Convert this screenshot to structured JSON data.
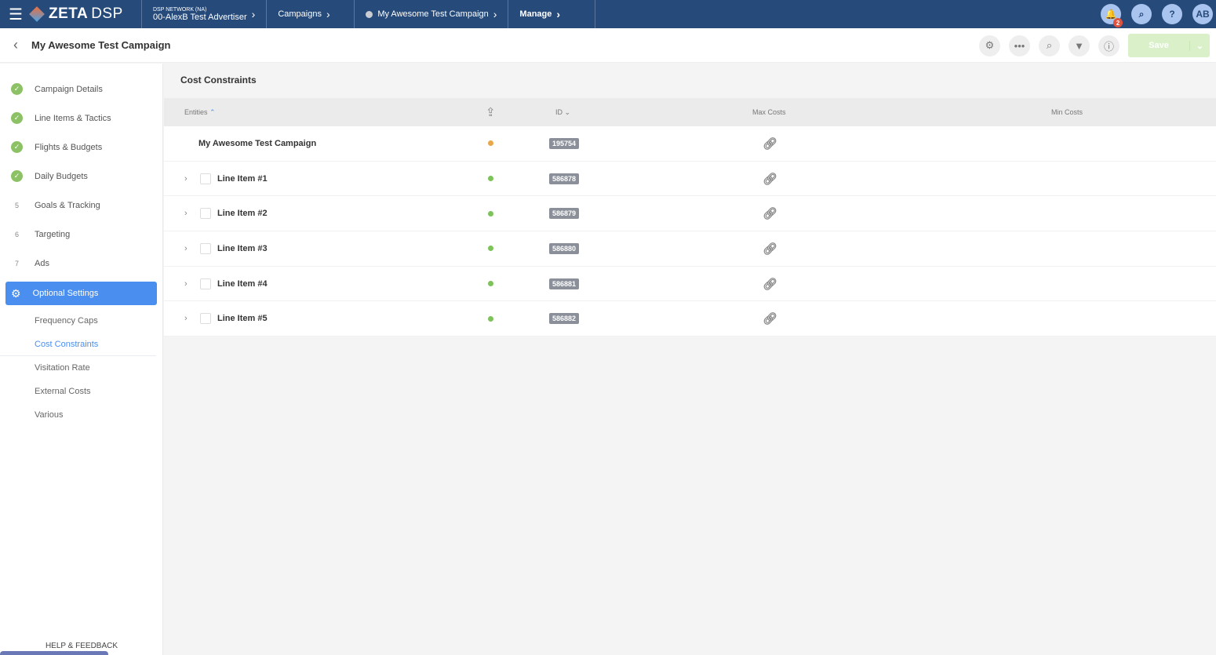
{
  "topbar": {
    "brand": "ZETA",
    "brand_suffix": "DSP",
    "network": "DSP NETWORK (NA)",
    "advertiser": "00-AlexB Test Advertiser",
    "crumbs": [
      "Campaigns",
      "My Awesome Test Campaign",
      "Manage"
    ],
    "notifications": "2",
    "user": "AB"
  },
  "header": {
    "title": "My Awesome Test Campaign",
    "save_label": "Save"
  },
  "sidebar": {
    "steps": [
      {
        "label": "Campaign Details",
        "done": true
      },
      {
        "label": "Line Items & Tactics",
        "done": true
      },
      {
        "label": "Flights & Budgets",
        "done": true
      },
      {
        "label": "Daily Budgets",
        "done": true
      },
      {
        "label": "Goals & Tracking",
        "num": "5"
      },
      {
        "label": "Targeting",
        "num": "6"
      },
      {
        "label": "Ads",
        "num": "7"
      }
    ],
    "active": "Optional Settings",
    "subs": [
      "Frequency Caps",
      "Cost Constraints",
      "Visitation Rate",
      "External Costs",
      "Various"
    ],
    "help": "HELP & FEEDBACK"
  },
  "main": {
    "title": "Cost Constraints",
    "columns": {
      "entities": "Entities",
      "id": "ID",
      "max": "Max Costs",
      "min": "Min Costs"
    },
    "rows": [
      {
        "name": "My Awesome Test Campaign",
        "id": "195754",
        "status": "#e8a74a"
      },
      {
        "name": "Line Item #1",
        "id": "586878",
        "status": "#7cc35a"
      },
      {
        "name": "Line Item #2",
        "id": "586879",
        "status": "#7cc35a"
      },
      {
        "name": "Line Item #3",
        "id": "586880",
        "status": "#7cc35a"
      },
      {
        "name": "Line Item #4",
        "id": "586881",
        "status": "#7cc35a"
      },
      {
        "name": "Line Item #5",
        "id": "586882",
        "status": "#7cc35a"
      }
    ]
  }
}
